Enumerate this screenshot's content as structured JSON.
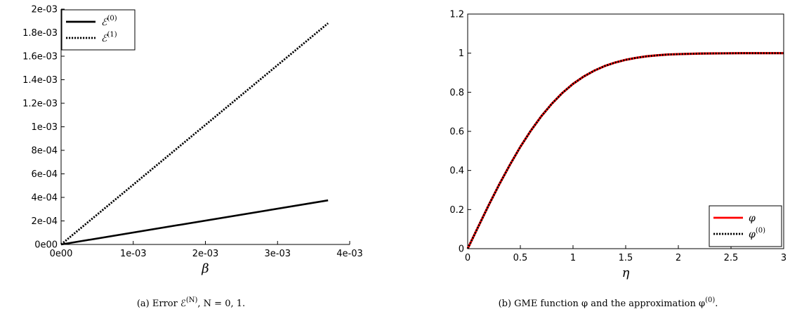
{
  "chart_data": [
    {
      "type": "line",
      "xlabel": "β",
      "xlim": [
        0,
        0.004
      ],
      "ylim": [
        0,
        0.002
      ],
      "x_ticks": [
        "0e00",
        "1e-03",
        "2e-03",
        "3e-03",
        "4e-03"
      ],
      "y_ticks": [
        "0e00",
        "2e-04",
        "4e-04",
        "6e-04",
        "8e-04",
        "1e-03",
        "1.2e-03",
        "1.4e-03",
        "1.6e-03",
        "1.8e-03",
        "2e-03"
      ],
      "legend_position": "top-left",
      "series": [
        {
          "name": "ℰ",
          "name_sup": "(0)",
          "style": "solid",
          "color": "#000000",
          "x": [
            0,
            0.0037
          ],
          "y": [
            0,
            0.000375
          ]
        },
        {
          "name": "ℰ",
          "name_sup": "(1)",
          "style": "dotted",
          "color": "#000000",
          "x": [
            0,
            0.0037
          ],
          "y": [
            0,
            0.00188
          ]
        }
      ],
      "caption": "(a) Error ℰ",
      "caption_sup": "(N)",
      "caption_tail": ", N = 0, 1."
    },
    {
      "type": "line",
      "xlabel": "η",
      "xlim": [
        0,
        3
      ],
      "ylim": [
        0,
        1.2
      ],
      "x_ticks": [
        "0",
        "0.5",
        "1",
        "1.5",
        "2",
        "2.5",
        "3"
      ],
      "y_ticks": [
        "0",
        "0.2",
        "0.4",
        "0.6",
        "0.8",
        "1",
        "1.2"
      ],
      "legend_position": "bottom-right",
      "series": [
        {
          "name": "φ",
          "name_sup": "",
          "style": "solid",
          "color": "#ff0000",
          "x": [
            0,
            0.1,
            0.2,
            0.3,
            0.4,
            0.5,
            0.6,
            0.7,
            0.8,
            0.9,
            1.0,
            1.1,
            1.2,
            1.3,
            1.4,
            1.5,
            1.6,
            1.7,
            1.8,
            1.9,
            2.0,
            2.2,
            2.4,
            2.6,
            2.8,
            3.0
          ],
          "y": [
            0,
            0.112,
            0.223,
            0.329,
            0.428,
            0.521,
            0.604,
            0.678,
            0.742,
            0.797,
            0.843,
            0.88,
            0.91,
            0.934,
            0.952,
            0.966,
            0.976,
            0.984,
            0.989,
            0.993,
            0.995,
            0.998,
            0.999,
            1.0,
            1.0,
            1.0
          ]
        },
        {
          "name": "φ",
          "name_sup": "(0)",
          "style": "dotted",
          "color": "#000000",
          "x": [
            0,
            0.1,
            0.2,
            0.3,
            0.4,
            0.5,
            0.6,
            0.7,
            0.8,
            0.9,
            1.0,
            1.1,
            1.2,
            1.3,
            1.4,
            1.5,
            1.6,
            1.7,
            1.8,
            1.9,
            2.0,
            2.2,
            2.4,
            2.6,
            2.8,
            3.0
          ],
          "y": [
            0,
            0.112,
            0.223,
            0.329,
            0.428,
            0.521,
            0.604,
            0.678,
            0.742,
            0.797,
            0.843,
            0.88,
            0.91,
            0.934,
            0.952,
            0.966,
            0.976,
            0.984,
            0.989,
            0.993,
            0.995,
            0.998,
            0.999,
            1.0,
            1.0,
            1.0
          ]
        }
      ],
      "caption": "(b) GME function φ and the approximation φ",
      "caption_sup": "(0)",
      "caption_tail": "."
    }
  ]
}
